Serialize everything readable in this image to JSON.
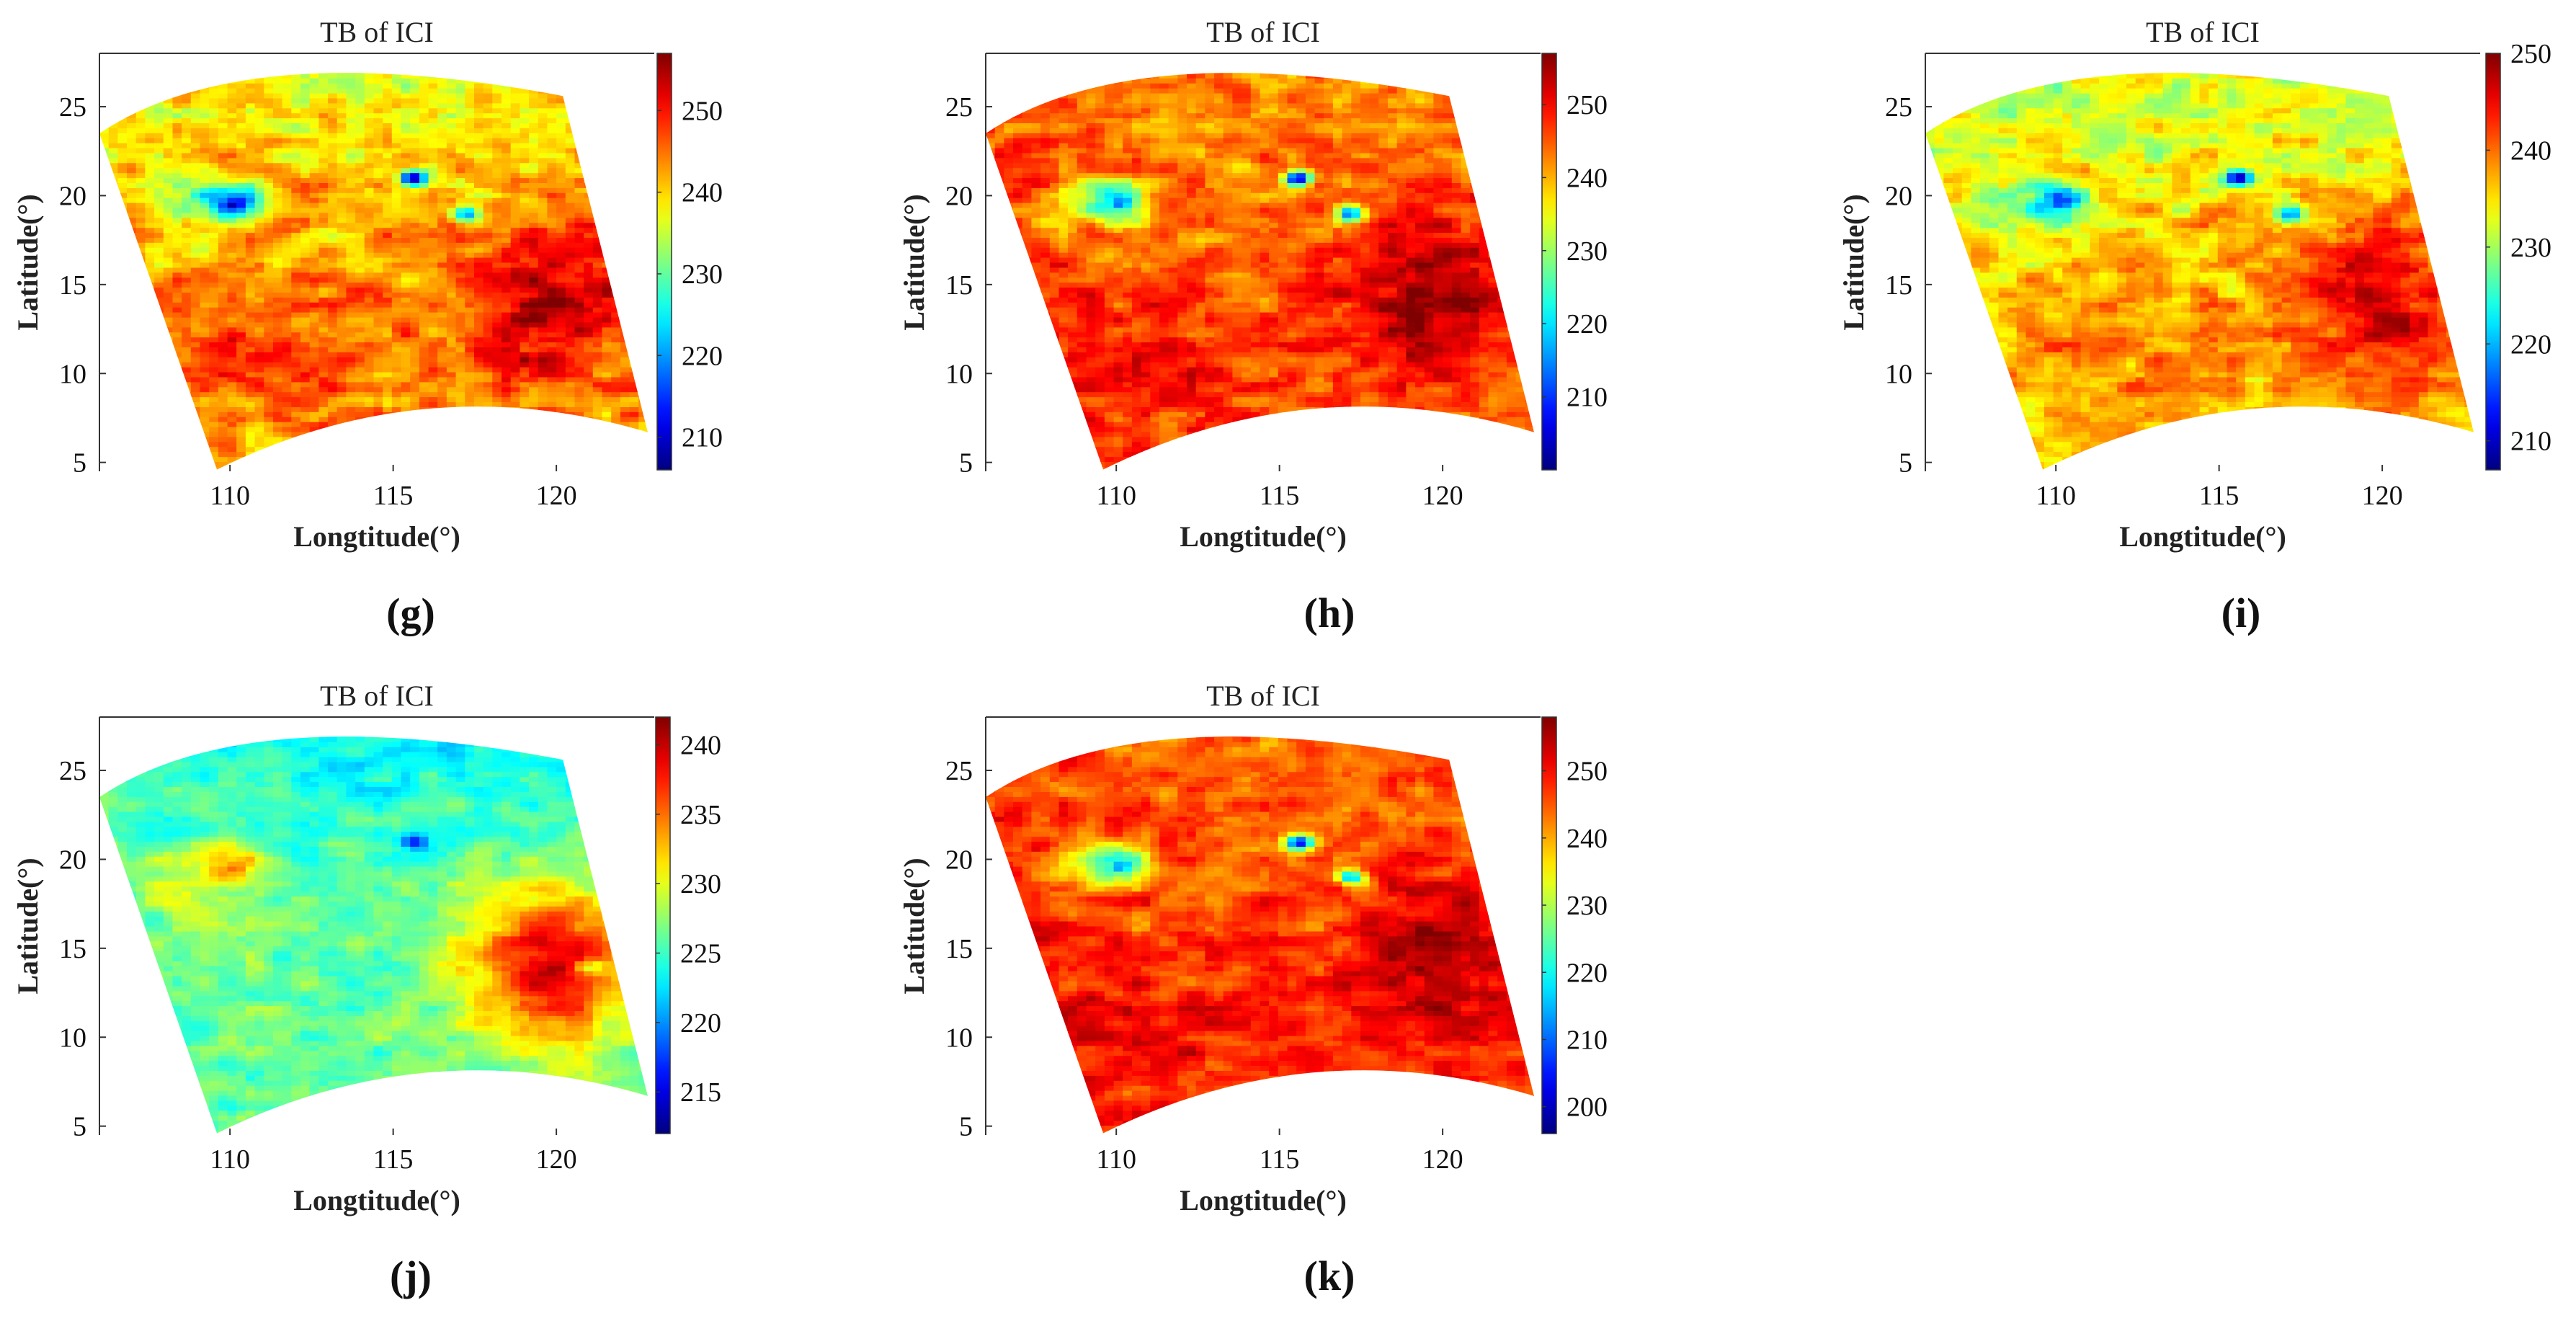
{
  "figure": {
    "panel_order": [
      "g",
      "h",
      "i",
      "j",
      "k"
    ]
  },
  "colormap": {
    "name": "jet",
    "stops": [
      "#00007f",
      "#0000ff",
      "#00ffff",
      "#ffff00",
      "#ff0000",
      "#7f0000"
    ]
  },
  "chart_data": [
    {
      "id": "g",
      "label": "(g)",
      "type": "heatmap",
      "title": "TB of ICI",
      "xlabel": "Longtitude(°)",
      "ylabel": "Latitude(°)",
      "xlim": [
        106,
        123
      ],
      "ylim": [
        4.5,
        28
      ],
      "xticks": [
        110,
        115,
        120
      ],
      "yticks": [
        5,
        10,
        15,
        20,
        25
      ],
      "clim": [
        206,
        257
      ],
      "cbar_ticks": [
        210,
        220,
        230,
        240,
        250
      ],
      "field": {
        "base": 243,
        "north": -6,
        "west": -1,
        "east_hot": 12,
        "southwest_hot": 6,
        "eye": -22,
        "cold_patches": [
          [
            115.6,
            21,
            -35
          ],
          [
            117.2,
            19,
            -25
          ]
        ],
        "noise": 6
      }
    },
    {
      "id": "h",
      "label": "(h)",
      "type": "heatmap",
      "title": "TB of ICI",
      "xlabel": "Longtitude(°)",
      "ylabel": "Latitude(°)",
      "xlim": [
        106,
        123
      ],
      "ylim": [
        4.5,
        28
      ],
      "xticks": [
        110,
        115,
        120
      ],
      "yticks": [
        5,
        10,
        15,
        20,
        25
      ],
      "clim": [
        200,
        257
      ],
      "cbar_ticks": [
        210,
        220,
        230,
        240,
        250
      ],
      "field": {
        "base": 245,
        "north": -3,
        "west": 2,
        "east_hot": 11,
        "southwest_hot": 5,
        "eye": -24,
        "cold_patches": [
          [
            115.6,
            21,
            -38
          ],
          [
            117.2,
            19,
            -28
          ]
        ],
        "noise": 6
      }
    },
    {
      "id": "i",
      "label": "(i)",
      "type": "heatmap",
      "title": "TB of ICI",
      "xlabel": "Longtitude(°)",
      "ylabel": "Latitude(°)",
      "xlim": [
        106,
        123
      ],
      "ylim": [
        4.5,
        28
      ],
      "xticks": [
        110,
        115,
        120
      ],
      "yticks": [
        5,
        10,
        15,
        20,
        25
      ],
      "clim": [
        207,
        250
      ],
      "cbar_ticks": [
        210,
        220,
        230,
        240,
        250
      ],
      "field": {
        "base": 237,
        "north": -6,
        "west": -1,
        "east_hot": 10,
        "southwest_hot": 3,
        "eye": -16,
        "cold_patches": [
          [
            115.6,
            21,
            -28
          ],
          [
            117.2,
            19,
            -18
          ]
        ],
        "noise": 5
      }
    },
    {
      "id": "j",
      "label": "(j)",
      "type": "heatmap",
      "title": "TB of ICI",
      "xlabel": "Longtitude(°)",
      "ylabel": "Latitude(°)",
      "xlim": [
        106,
        123
      ],
      "ylim": [
        4.5,
        28
      ],
      "xticks": [
        110,
        115,
        120
      ],
      "yticks": [
        5,
        10,
        15,
        20,
        25
      ],
      "clim": [
        212,
        242
      ],
      "cbar_ticks": [
        215,
        220,
        225,
        230,
        235,
        240
      ],
      "field": {
        "base": 226,
        "north": -3,
        "west": 1,
        "east_hot": 13,
        "southwest_hot": 0,
        "eye": 8,
        "cold_patches": [
          [
            115.6,
            21,
            -10
          ],
          [
            121.5,
            24,
            -10
          ],
          [
            121,
            14,
            -6
          ]
        ],
        "noise": 2.5
      }
    },
    {
      "id": "k",
      "label": "(k)",
      "type": "heatmap",
      "title": "TB of ICI",
      "xlabel": "Longtitude(°)",
      "ylabel": "Latitude(°)",
      "xlim": [
        106,
        123
      ],
      "ylim": [
        4.5,
        28
      ],
      "xticks": [
        110,
        115,
        120
      ],
      "yticks": [
        5,
        10,
        15,
        20,
        25
      ],
      "clim": [
        196,
        258
      ],
      "cbar_ticks": [
        200,
        210,
        220,
        230,
        240,
        250
      ],
      "field": {
        "base": 247,
        "north": -3,
        "west": 3,
        "east_hot": 9,
        "southwest_hot": 4,
        "eye": -26,
        "cold_patches": [
          [
            115.6,
            21,
            -40
          ],
          [
            117.2,
            19,
            -30
          ]
        ],
        "noise": 6
      }
    }
  ]
}
